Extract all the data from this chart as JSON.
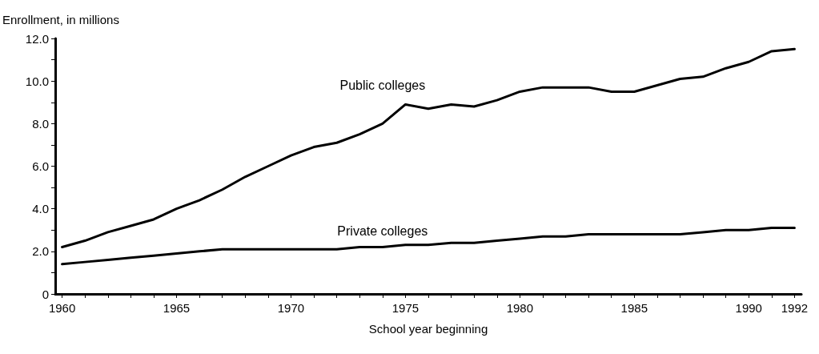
{
  "chart_data": {
    "type": "line",
    "ylabel": "Enrollment, in millions",
    "xlabel": "School year beginning",
    "x": [
      1960,
      1961,
      1962,
      1963,
      1964,
      1965,
      1966,
      1967,
      1968,
      1969,
      1970,
      1971,
      1972,
      1973,
      1974,
      1975,
      1976,
      1977,
      1978,
      1979,
      1980,
      1981,
      1982,
      1983,
      1984,
      1985,
      1986,
      1987,
      1988,
      1989,
      1990,
      1991,
      1992
    ],
    "series": [
      {
        "name": "Public colleges",
        "color": "#000000",
        "values": [
          2.2,
          2.5,
          2.9,
          3.2,
          3.5,
          4.0,
          4.4,
          4.9,
          5.5,
          6.0,
          6.5,
          6.9,
          7.1,
          7.5,
          8.0,
          8.9,
          8.7,
          8.9,
          8.8,
          9.1,
          9.5,
          9.7,
          9.7,
          9.7,
          9.5,
          9.5,
          9.8,
          10.1,
          10.2,
          10.6,
          10.9,
          11.4,
          11.5
        ]
      },
      {
        "name": "Private colleges",
        "color": "#000000",
        "values": [
          1.4,
          1.5,
          1.6,
          1.7,
          1.8,
          1.9,
          2.0,
          2.1,
          2.1,
          2.1,
          2.1,
          2.1,
          2.1,
          2.2,
          2.2,
          2.3,
          2.3,
          2.4,
          2.4,
          2.5,
          2.6,
          2.7,
          2.7,
          2.8,
          2.8,
          2.8,
          2.8,
          2.8,
          2.9,
          3.0,
          3.0,
          3.1,
          3.1
        ]
      }
    ],
    "xlim": [
      1959.7,
      1992.3
    ],
    "xticks": [
      1960,
      {
        "value": 1961,
        "label": null
      },
      {
        "value": 1962,
        "label": null
      },
      {
        "value": 1963,
        "label": null
      },
      {
        "value": 1964,
        "label": null
      },
      1965,
      {
        "value": 1966,
        "label": null
      },
      {
        "value": 1967,
        "label": null
      },
      {
        "value": 1968,
        "label": null
      },
      {
        "value": 1969,
        "label": null
      },
      1970,
      {
        "value": 1971,
        "label": null
      },
      {
        "value": 1972,
        "label": null
      },
      {
        "value": 1973,
        "label": null
      },
      {
        "value": 1974,
        "label": null
      },
      1975,
      {
        "value": 1976,
        "label": null
      },
      {
        "value": 1977,
        "label": null
      },
      {
        "value": 1978,
        "label": null
      },
      {
        "value": 1979,
        "label": null
      },
      1980,
      {
        "value": 1981,
        "label": null
      },
      {
        "value": 1982,
        "label": null
      },
      {
        "value": 1983,
        "label": null
      },
      {
        "value": 1984,
        "label": null
      },
      1985,
      {
        "value": 1986,
        "label": null
      },
      {
        "value": 1987,
        "label": null
      },
      {
        "value": 1988,
        "label": null
      },
      {
        "value": 1989,
        "label": null
      },
      1990,
      {
        "value": 1991,
        "label": null
      },
      1992
    ],
    "ylim": [
      0,
      12
    ],
    "yticks": [
      0,
      {
        "value": 1,
        "label": null
      },
      {
        "value": 2,
        "label": "2.0"
      },
      {
        "value": 3,
        "label": null
      },
      {
        "value": 4,
        "label": "4.0"
      },
      {
        "value": 5,
        "label": null
      },
      {
        "value": 6,
        "label": "6.0"
      },
      {
        "value": 7,
        "label": null
      },
      {
        "value": 8,
        "label": "8.0"
      },
      {
        "value": 9,
        "label": null
      },
      {
        "value": 10,
        "label": "10.0"
      },
      {
        "value": 11,
        "label": null
      },
      {
        "value": 12,
        "label": "12.0"
      }
    ],
    "grid": false,
    "legend": false,
    "marker": "none",
    "line_style": "solid"
  }
}
